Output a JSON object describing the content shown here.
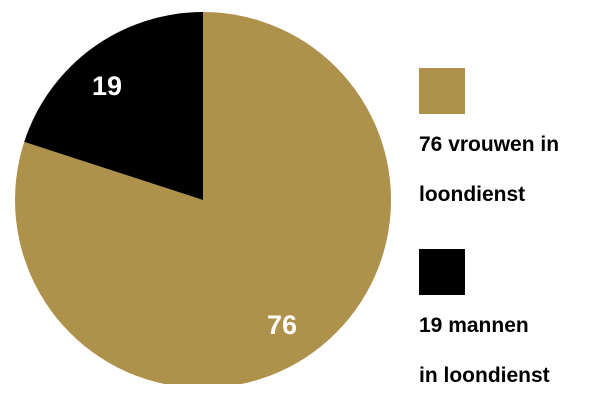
{
  "chart_data": {
    "type": "pie",
    "title": "",
    "slices": [
      {
        "label": "76 vrouwen in loondienst",
        "value": 76,
        "value_label": "76",
        "color": "#ae914a",
        "legend_lines": [
          "76 vrouwen in",
          "loondienst"
        ]
      },
      {
        "label": "19 mannen in loondienst",
        "value": 19,
        "value_label": "19",
        "color": "#000000",
        "legend_lines": [
          "19 mannen",
          "in loondienst"
        ]
      }
    ],
    "start_angle": "12 o'clock",
    "direction": "clockwise",
    "legend_position": "right"
  }
}
